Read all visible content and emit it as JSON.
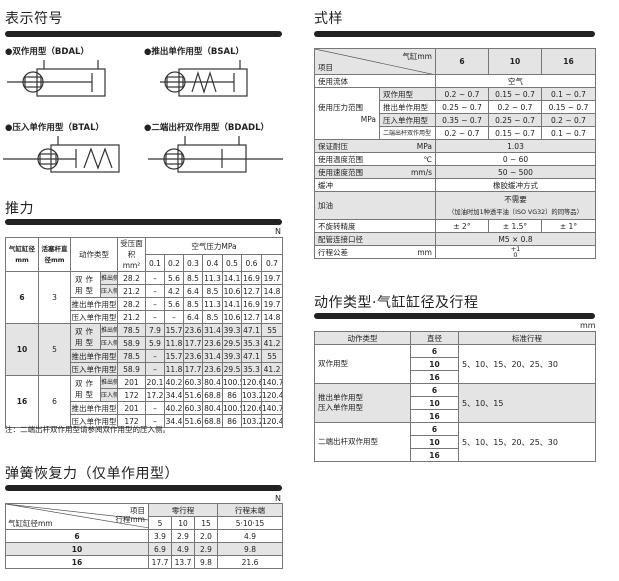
{
  "symbols": {
    "title": "表示符号",
    "items": [
      {
        "label": "●双作用型（BDAL）"
      },
      {
        "label": "●推出单作用型（BSAL）"
      },
      {
        "label": "●压入单作用型（BTAL）"
      },
      {
        "label": "●二端出杆双作用型（BDADL）"
      }
    ]
  },
  "thrust": {
    "title": "推力",
    "unit": "N",
    "headers": {
      "bore": "气缸缸径 mm",
      "rod": "活塞杆直径mm",
      "type": "动作类型",
      "area": "受压面积 mm²",
      "pressure": "空气压力MPa",
      "pressures": [
        "0.1",
        "0.2",
        "0.3",
        "0.4",
        "0.5",
        "0.6",
        "0.7"
      ]
    },
    "groups": [
      {
        "bore": "6",
        "rod": "3",
        "rows": [
          {
            "type": "双作用型",
            "side": "推出侧",
            "area": "28.2",
            "values": [
              "–",
              "5.6",
              "8.5",
              "11.3",
              "14.1",
              "16.9",
              "19.7"
            ]
          },
          {
            "type": "",
            "side": "压入侧",
            "area": "21.2",
            "values": [
              "–",
              "4.2",
              "6.4",
              "8.5",
              "10.6",
              "12.7",
              "14.8"
            ]
          },
          {
            "type": "推出单作用型",
            "side": "",
            "area": "28.2",
            "values": [
              "–",
              "5.6",
              "8.5",
              "11.3",
              "14.1",
              "16.9",
              "19.7"
            ]
          },
          {
            "type": "压入单作用型",
            "side": "",
            "area": "21.2",
            "values": [
              "–",
              "–",
              "6.4",
              "8.5",
              "10.6",
              "12.7",
              "14.8"
            ]
          }
        ]
      },
      {
        "bore": "10",
        "rod": "5",
        "rows": [
          {
            "type": "双作用型",
            "side": "推出侧",
            "area": "78.5",
            "values": [
              "7.9",
              "15.7",
              "23.6",
              "31.4",
              "39.3",
              "47.1",
              "55"
            ]
          },
          {
            "type": "",
            "side": "压入侧",
            "area": "58.9",
            "values": [
              "5.9",
              "11.8",
              "17.7",
              "23.6",
              "29.5",
              "35.3",
              "41.2"
            ]
          },
          {
            "type": "推出单作用型",
            "side": "",
            "area": "78.5",
            "values": [
              "–",
              "15.7",
              "23.6",
              "31.4",
              "39.3",
              "47.1",
              "55"
            ]
          },
          {
            "type": "压入单作用型",
            "side": "",
            "area": "58.9",
            "values": [
              "–",
              "11.8",
              "17.7",
              "23.6",
              "29.5",
              "35.3",
              "41.2"
            ]
          }
        ]
      },
      {
        "bore": "16",
        "rod": "6",
        "rows": [
          {
            "type": "双作用型",
            "side": "推出侧",
            "area": "201",
            "values": [
              "20.1",
              "40.2",
              "60.3",
              "80.4",
              "100.5",
              "120.6",
              "140.7"
            ]
          },
          {
            "type": "",
            "side": "压入侧",
            "area": "172",
            "values": [
              "17.2",
              "34.4",
              "51.6",
              "68.8",
              "86",
              "103.2",
              "120.4"
            ]
          },
          {
            "type": "推出单作用型",
            "side": "",
            "area": "201",
            "values": [
              "–",
              "40.2",
              "60.3",
              "80.4",
              "100.5",
              "120.6",
              "140.7"
            ]
          },
          {
            "type": "压入单作用型",
            "side": "",
            "area": "172",
            "values": [
              "–",
              "34.4",
              "51.6",
              "68.8",
              "86",
              "103.2",
              "120.4"
            ]
          }
        ]
      }
    ],
    "note": "注：二端出杆双作用型请参阅双作用型的压入侧。"
  },
  "spring": {
    "title": "弹簧恢复力（仅单作用型）",
    "unit": "N",
    "headers": {
      "item": "项目",
      "stroke": "行程mm",
      "bore": "气缸缸径mm",
      "zero": "零行程",
      "end": "行程末端",
      "strokes": [
        "5",
        "10",
        "15"
      ],
      "end_strokes": "5·10·15"
    },
    "rows": [
      {
        "bore": "6",
        "values": [
          "3.9",
          "2.9",
          "2.0"
        ],
        "end": "4.9"
      },
      {
        "bore": "10",
        "values": [
          "6.9",
          "4.9",
          "2.9"
        ],
        "end": "9.8"
      },
      {
        "bore": "16",
        "values": [
          "17.7",
          "13.7",
          "9.8"
        ],
        "end": "21.6"
      }
    ]
  },
  "spec": {
    "title": "式样",
    "headers": {
      "cyl": "气缸mm",
      "item": "项目",
      "bores": [
        "6",
        "10",
        "16"
      ]
    },
    "fluid": {
      "label": "使用流体",
      "value": "空气"
    },
    "pressure": {
      "label": "使用压力范围",
      "unit": "MPa",
      "rows": [
        {
          "type": "双作用型",
          "values": [
            "0.2 ~ 0.7",
            "0.15 ~ 0.7",
            "0.1 ~ 0.7"
          ]
        },
        {
          "type": "推出单作用型",
          "values": [
            "0.25 ~ 0.7",
            "0.2 ~ 0.7",
            "0.15 ~ 0.7"
          ]
        },
        {
          "type": "压入单作用型",
          "values": [
            "0.35 ~ 0.7",
            "0.25 ~ 0.7",
            "0.2 ~ 0.7"
          ]
        },
        {
          "type": "二端出杆双作用型",
          "values": [
            "0.2 ~ 0.7",
            "0.15 ~ 0.7",
            "0.1 ~ 0.7"
          ]
        }
      ]
    },
    "proof": {
      "label": "保证耐压",
      "unit": "MPa",
      "value": "1.03"
    },
    "temp": {
      "label": "使用温度范围",
      "unit": "℃",
      "value": "0 ~ 60"
    },
    "speed": {
      "label": "使用速度范围",
      "unit": "mm/s",
      "value": "50 ~ 500"
    },
    "cushion": {
      "label": "缓冲",
      "value": "橡胶缓冲方式"
    },
    "lube": {
      "label": "加油",
      "value": "不需要",
      "sub": "（加油时加1种透平油〔ISO VG32〕的同等品）"
    },
    "nonrot": {
      "label": "不旋转精度",
      "values": [
        "± 2°",
        "± 1.5°",
        "± 1°"
      ]
    },
    "port": {
      "label": "配管连接口径",
      "value": "M5 × 0.8"
    },
    "tol": {
      "label": "行程公差",
      "unit": "mm",
      "plus": "+1",
      "minus": "0"
    }
  },
  "strokes": {
    "title": "动作类型·气缸缸径及行程",
    "unit": "mm",
    "headers": [
      "动作类型",
      "直径",
      "标准行程"
    ],
    "groups": [
      {
        "type": "双作用型",
        "bores": [
          "6",
          "10",
          "16"
        ],
        "strokes": "5、10、15、20、25、30"
      },
      {
        "type": "推出单作用型\n压入单作用型",
        "bores": [
          "6",
          "10",
          "16"
        ],
        "strokes": "5、10、15"
      },
      {
        "type": "二端出杆双作用型",
        "bores": [
          "6",
          "10",
          "16"
        ],
        "strokes": "5、10、15、20、25、30"
      }
    ]
  }
}
